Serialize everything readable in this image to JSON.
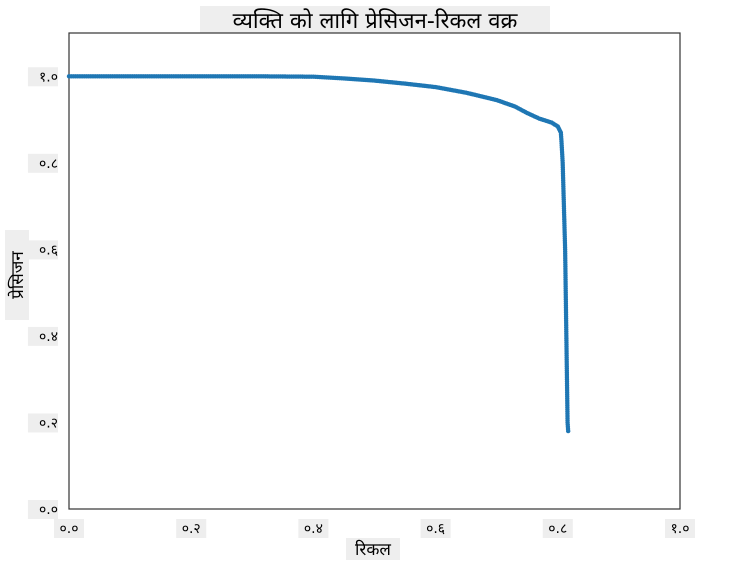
{
  "chart_data": {
    "type": "scatter",
    "title": "व्यक्ति को लागि प्रेसिजन-रिकल वक्र",
    "xlabel": "रिकल",
    "ylabel": "प्रेसिजन",
    "xlim": [
      0.0,
      1.0
    ],
    "ylim": [
      0.0,
      1.1
    ],
    "xticks": [
      {
        "value": 0.0,
        "label": "०.०"
      },
      {
        "value": 0.2,
        "label": "०.२"
      },
      {
        "value": 0.4,
        "label": "०.४"
      },
      {
        "value": 0.6,
        "label": "०.६"
      },
      {
        "value": 0.8,
        "label": "०.८"
      },
      {
        "value": 1.0,
        "label": "१.०"
      }
    ],
    "yticks": [
      {
        "value": 0.0,
        "label": "०.०"
      },
      {
        "value": 0.2,
        "label": "०.२"
      },
      {
        "value": 0.4,
        "label": "०.४"
      },
      {
        "value": 0.6,
        "label": "०.६"
      },
      {
        "value": 0.8,
        "label": "०.८"
      },
      {
        "value": 1.0,
        "label": "१.०"
      }
    ],
    "grid": false,
    "legend": "none",
    "point_color": "#1f77b4",
    "curve_points": [
      [
        0.0,
        1.0
      ],
      [
        0.1,
        1.0
      ],
      [
        0.2,
        1.0
      ],
      [
        0.3,
        1.0
      ],
      [
        0.4,
        0.999
      ],
      [
        0.45,
        0.995
      ],
      [
        0.5,
        0.99
      ],
      [
        0.55,
        0.983
      ],
      [
        0.6,
        0.975
      ],
      [
        0.65,
        0.962
      ],
      [
        0.7,
        0.945
      ],
      [
        0.73,
        0.93
      ],
      [
        0.75,
        0.915
      ],
      [
        0.77,
        0.902
      ],
      [
        0.79,
        0.893
      ],
      [
        0.8,
        0.884
      ],
      [
        0.805,
        0.87
      ],
      [
        0.806,
        0.85
      ],
      [
        0.808,
        0.8
      ],
      [
        0.81,
        0.7
      ],
      [
        0.812,
        0.6
      ],
      [
        0.813,
        0.5
      ],
      [
        0.814,
        0.4
      ],
      [
        0.815,
        0.3
      ],
      [
        0.816,
        0.2
      ],
      [
        0.817,
        0.18
      ]
    ]
  }
}
